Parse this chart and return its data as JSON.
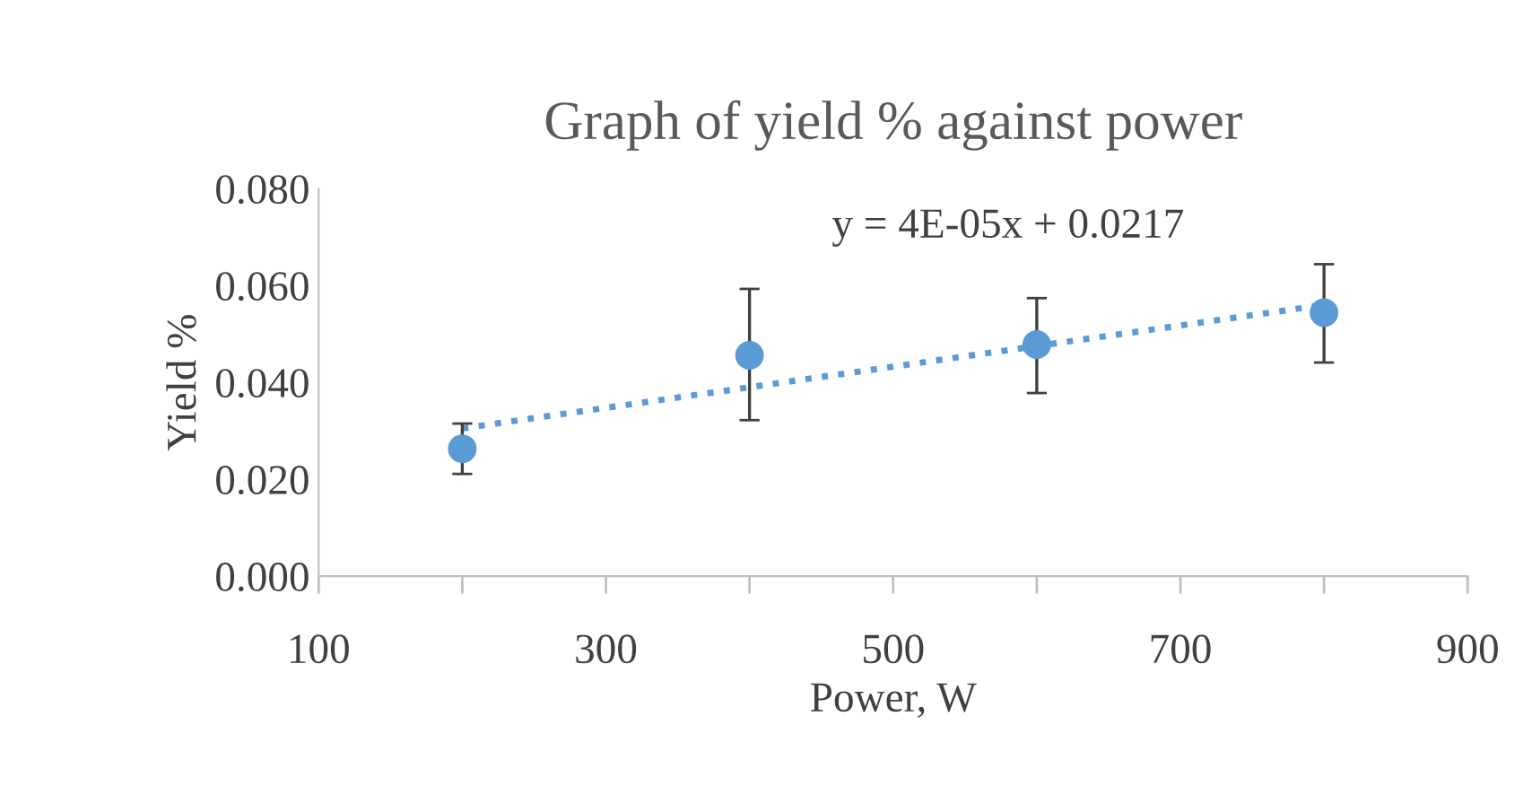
{
  "chart_data": {
    "type": "scatter",
    "title": "Graph of yield % against power",
    "xlabel": "Power, W",
    "ylabel": "Yield %",
    "series": [
      {
        "marker": "circle",
        "color": "#5b9bd5",
        "x": [
          200,
          400,
          600,
          800
        ],
        "values": [
          0.0263,
          0.0456,
          0.0478,
          0.0544
        ],
        "errors": [
          [
            0.0211,
            0.0315
          ],
          [
            0.0322,
            0.0593
          ],
          [
            0.0378,
            0.0574
          ],
          [
            0.0441,
            0.0644
          ]
        ]
      },
      {
        "type": "line",
        "color": "#5b9bd5",
        "line_style": "dotted",
        "x": [
          200,
          800
        ],
        "values": [
          0.0305,
          0.056
        ]
      }
    ],
    "annotations": [
      "y = 4E-05x + 0.0217"
    ],
    "xlim": [
      100,
      900
    ],
    "ylim": [
      0,
      0.08
    ],
    "xticks": [
      100,
      {
        "value": 200,
        "label": null
      },
      300,
      {
        "value": 400,
        "label": null
      },
      500,
      {
        "value": 600,
        "label": null
      },
      700,
      {
        "value": 800,
        "label": null
      },
      900
    ],
    "yticks": [
      {
        "value": 0,
        "label": "0.000"
      },
      {
        "value": 0.02,
        "label": "0.020"
      },
      {
        "value": 0.04,
        "label": "0.040"
      },
      {
        "value": 0.06,
        "label": "0.060"
      },
      {
        "value": 0.08,
        "label": "0.080"
      }
    ],
    "grid": false,
    "legend": false
  }
}
